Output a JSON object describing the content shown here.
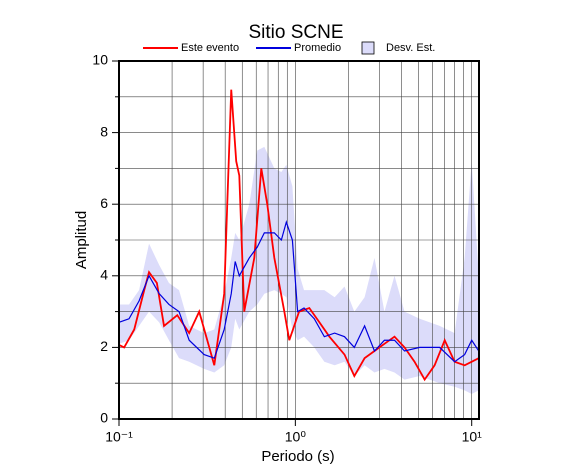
{
  "chart_data": {
    "type": "line",
    "title": "Sitio SCNE",
    "xlabel": "Periodo (s)",
    "ylabel": "Amplitud",
    "log_x": true,
    "grid": true,
    "xlim": [
      0.1,
      11
    ],
    "ylim": [
      0,
      10
    ],
    "xticks": [
      {
        "value": 0.1,
        "label": "10⁻¹"
      },
      {
        "value": 1,
        "label": "10⁰"
      },
      {
        "value": 10,
        "label": "10¹"
      }
    ],
    "xgrid": [
      0.2,
      0.3,
      0.4,
      0.5,
      0.6,
      0.7,
      0.8,
      0.9,
      2,
      3,
      4,
      5,
      6,
      7,
      8,
      9
    ],
    "yticks": [
      0,
      2,
      4,
      6,
      8,
      10
    ],
    "ygrid": [
      1,
      3,
      5,
      7,
      9
    ],
    "band": {
      "name": "Desv. Est.",
      "color": "#dcdcfa",
      "x": [
        0.1,
        0.114,
        0.13,
        0.148,
        0.169,
        0.192,
        0.219,
        0.25,
        0.304,
        0.347,
        0.395,
        0.433,
        0.456,
        0.481,
        0.548,
        0.608,
        0.667,
        0.76,
        0.833,
        0.889,
        0.962,
        1.03,
        1.12,
        1.28,
        1.46,
        1.67,
        1.9,
        2.16,
        2.47,
        2.81,
        3.2,
        3.65,
        4.16,
        5.07,
        6.58,
        8.0,
        9.12,
        10.0,
        10.96
      ],
      "upper": [
        3.2,
        3.2,
        3.6,
        4.9,
        4.3,
        3.8,
        3.6,
        2.6,
        2.4,
        2.5,
        3.5,
        4.5,
        5.2,
        5.0,
        6.0,
        7.5,
        7.6,
        7.0,
        6.9,
        7.1,
        6.5,
        4.2,
        3.6,
        3.6,
        3.6,
        3.4,
        3.7,
        3.0,
        3.4,
        4.5,
        3.0,
        4.0,
        3.0,
        2.8,
        2.6,
        2.4,
        4.5,
        7.2,
        4.0
      ],
      "lower": [
        2.1,
        2.2,
        2.6,
        3.0,
        2.7,
        2.2,
        1.7,
        1.6,
        1.4,
        1.3,
        1.5,
        2.0,
        2.8,
        2.5,
        3.0,
        3.2,
        3.5,
        3.6,
        3.5,
        3.4,
        2.5,
        2.2,
        2.3,
        2.0,
        1.6,
        1.5,
        1.6,
        1.2,
        1.5,
        1.3,
        1.4,
        1.3,
        1.1,
        1.2,
        1.0,
        0.9,
        0.8,
        0.7,
        0.8
      ]
    },
    "series": [
      {
        "name": "Este evento",
        "color": "#ff0000",
        "x": [
          0.1,
          0.107,
          0.122,
          0.139,
          0.148,
          0.164,
          0.18,
          0.214,
          0.25,
          0.285,
          0.325,
          0.347,
          0.395,
          0.411,
          0.433,
          0.462,
          0.481,
          0.513,
          0.585,
          0.641,
          0.693,
          0.76,
          0.866,
          0.924,
          1.05,
          1.2,
          1.37,
          1.56,
          1.9,
          2.16,
          2.47,
          2.81,
          3.2,
          3.65,
          4.16,
          4.74,
          5.41,
          6.16,
          7.03,
          8.0,
          9.12,
          10.96
        ],
        "values": [
          2.07,
          2.0,
          2.5,
          3.6,
          4.1,
          3.8,
          2.6,
          2.9,
          2.4,
          3.0,
          2.0,
          1.5,
          3.5,
          6.0,
          9.2,
          7.2,
          6.8,
          3.0,
          4.5,
          7.0,
          6.0,
          4.5,
          3.0,
          2.2,
          3.0,
          3.1,
          2.7,
          2.3,
          1.8,
          1.2,
          1.7,
          1.9,
          2.1,
          2.3,
          2.0,
          1.6,
          1.1,
          1.5,
          2.2,
          1.6,
          1.5,
          1.7
        ]
      },
      {
        "name": "Promedio",
        "color": "#0000dd",
        "x": [
          0.1,
          0.114,
          0.13,
          0.148,
          0.169,
          0.192,
          0.219,
          0.25,
          0.304,
          0.347,
          0.395,
          0.433,
          0.456,
          0.481,
          0.548,
          0.608,
          0.667,
          0.76,
          0.833,
          0.889,
          0.962,
          1.03,
          1.12,
          1.28,
          1.46,
          1.67,
          1.9,
          2.16,
          2.47,
          2.81,
          3.2,
          3.65,
          4.16,
          5.07,
          6.58,
          8.0,
          9.12,
          10.0,
          10.96
        ],
        "values": [
          2.7,
          2.8,
          3.3,
          4.0,
          3.5,
          3.2,
          3.0,
          2.2,
          1.8,
          1.7,
          2.5,
          3.5,
          4.4,
          4.0,
          4.5,
          4.8,
          5.2,
          5.2,
          5.0,
          5.5,
          5.0,
          3.0,
          3.1,
          2.8,
          2.3,
          2.4,
          2.3,
          2.0,
          2.6,
          1.9,
          2.2,
          2.2,
          1.9,
          2.0,
          2.0,
          1.6,
          1.8,
          2.2,
          1.9
        ]
      }
    ]
  }
}
